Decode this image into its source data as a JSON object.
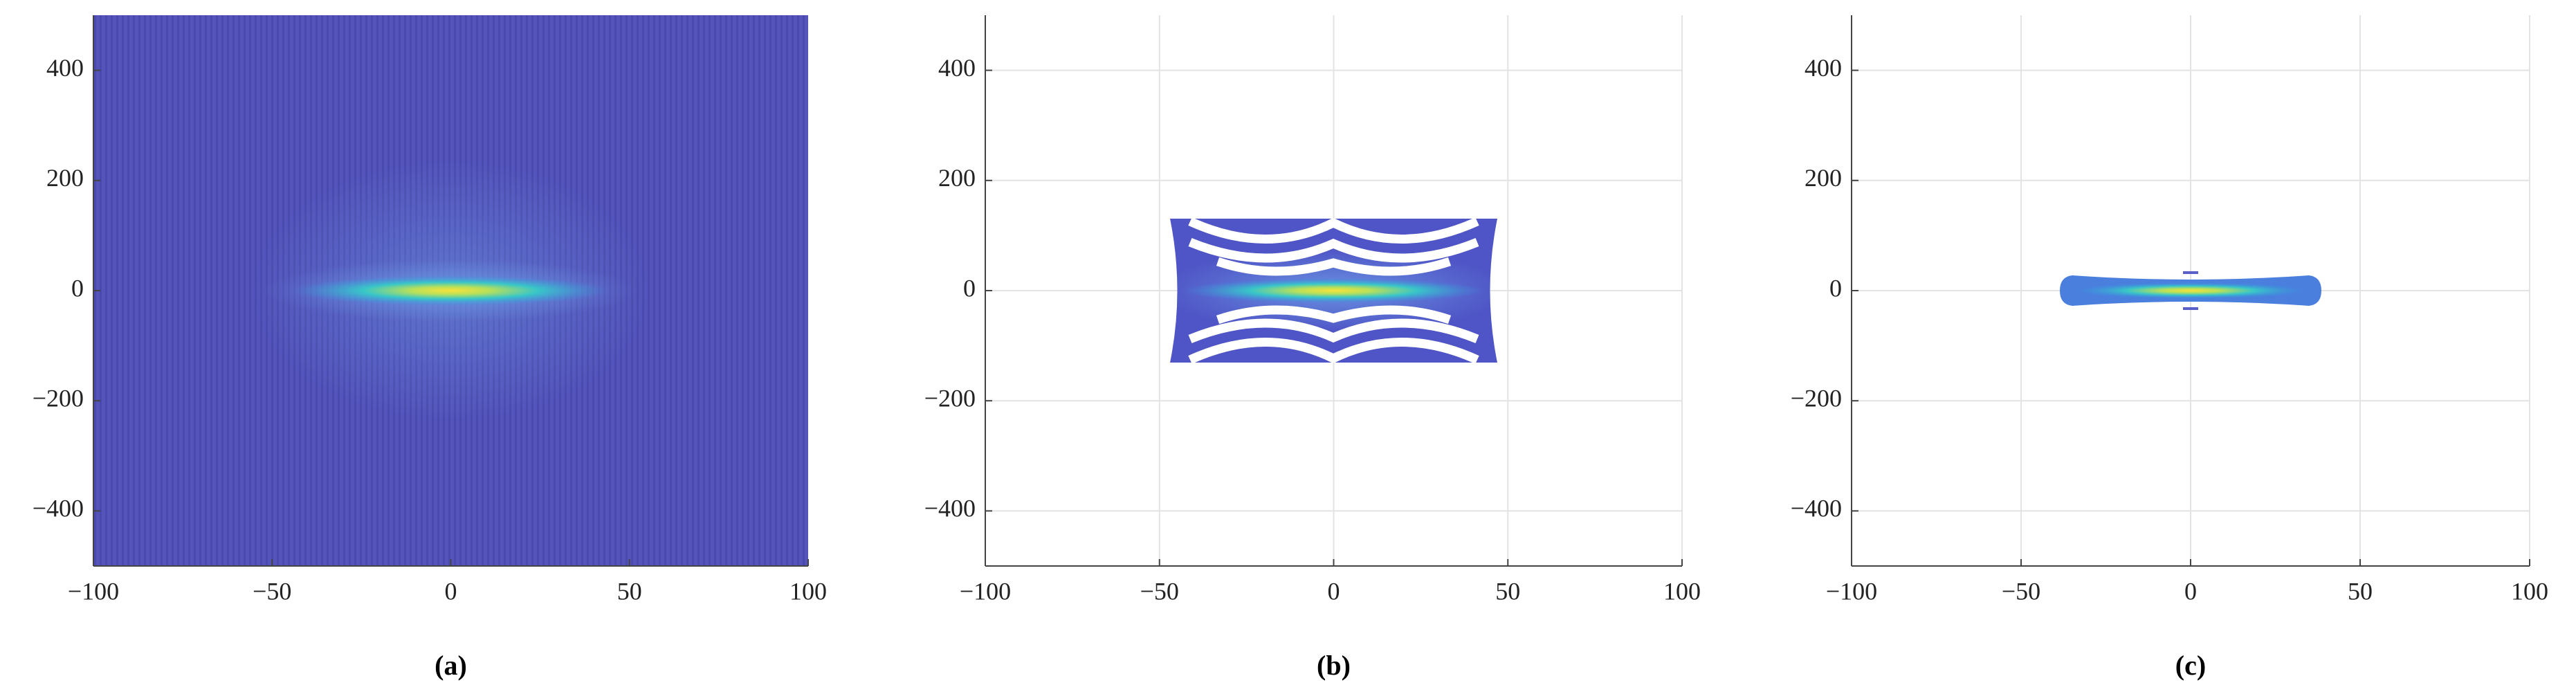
{
  "chart_data": [
    {
      "type": "heatmap",
      "caption": "(a)",
      "xlim": [
        -100,
        100
      ],
      "ylim": [
        -500,
        500
      ],
      "xticks": [
        {
          "value": -100,
          "label": "−100"
        },
        {
          "value": -50,
          "label": "−50"
        },
        0,
        50,
        100
      ],
      "yticks": [
        {
          "value": -400,
          "label": "−400"
        },
        {
          "value": -200,
          "label": "−200"
        },
        0,
        200,
        400
      ],
      "grid": false
    },
    {
      "type": "heatmap",
      "caption": "(b)",
      "xlim": [
        -100,
        100
      ],
      "ylim": [
        -500,
        500
      ],
      "xticks": [
        {
          "value": -100,
          "label": "−100"
        },
        {
          "value": -50,
          "label": "−50"
        },
        0,
        50,
        100
      ],
      "yticks": [
        {
          "value": -400,
          "label": "−400"
        },
        {
          "value": -200,
          "label": "−200"
        },
        0,
        200,
        400
      ],
      "grid": true
    },
    {
      "type": "heatmap",
      "caption": "(c)",
      "xlim": [
        -100,
        100
      ],
      "ylim": [
        -500,
        500
      ],
      "xticks": [
        {
          "value": -100,
          "label": "−100"
        },
        {
          "value": -50,
          "label": "−50"
        },
        0,
        50,
        100
      ],
      "yticks": [
        {
          "value": -400,
          "label": "−400"
        },
        {
          "value": -200,
          "label": "−200"
        },
        0,
        200,
        400
      ],
      "grid": true
    }
  ]
}
